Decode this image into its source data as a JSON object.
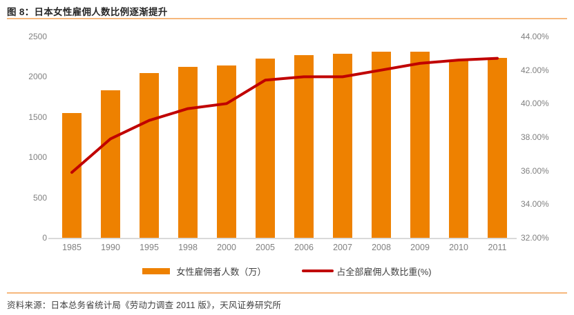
{
  "header": {
    "title": "图 8：日本女性雇佣人数比例逐渐提升"
  },
  "footer": {
    "source": "资料来源：日本总务省统计局《劳动力调查 2011 版》，天风证券研究所"
  },
  "colors": {
    "bar": "#ee8100",
    "line": "#c00000",
    "rule": "#f6b77c",
    "axis_text": "#808080",
    "title_text": "#262626"
  },
  "chart_data": {
    "type": "bar",
    "subtype": "combo-bar-line-dual-axis",
    "title": "图 8：日本女性雇佣人数比例逐渐提升",
    "categories": [
      "1985",
      "1990",
      "1995",
      "1998",
      "2000",
      "2005",
      "2006",
      "2007",
      "2008",
      "2009",
      "2010",
      "2011"
    ],
    "series": [
      {
        "name": "女性雇佣者人数（万）",
        "type": "bar",
        "axis": "left",
        "color": "#ee8100",
        "values": [
          1548,
          1834,
          2048,
          2124,
          2140,
          2229,
          2270,
          2290,
          2310,
          2308,
          2200,
          2237
        ]
      },
      {
        "name": "占全部雇佣人数比重(%)",
        "type": "line",
        "axis": "right",
        "color": "#c00000",
        "values": [
          35.9,
          37.9,
          39.0,
          39.7,
          40.0,
          41.4,
          41.6,
          41.6,
          42.0,
          42.4,
          42.6,
          42.7
        ]
      }
    ],
    "left_axis": {
      "min": 0,
      "max": 2500,
      "tick_labels": [
        "2500",
        "2000",
        "1500",
        "1000",
        "500",
        "0"
      ]
    },
    "right_axis": {
      "min": 32,
      "max": 44,
      "tick_labels": [
        "44.00%",
        "42.00%",
        "40.00%",
        "38.00%",
        "36.00%",
        "34.00%",
        "32.00%"
      ]
    },
    "grid": false,
    "legend_position": "bottom"
  }
}
